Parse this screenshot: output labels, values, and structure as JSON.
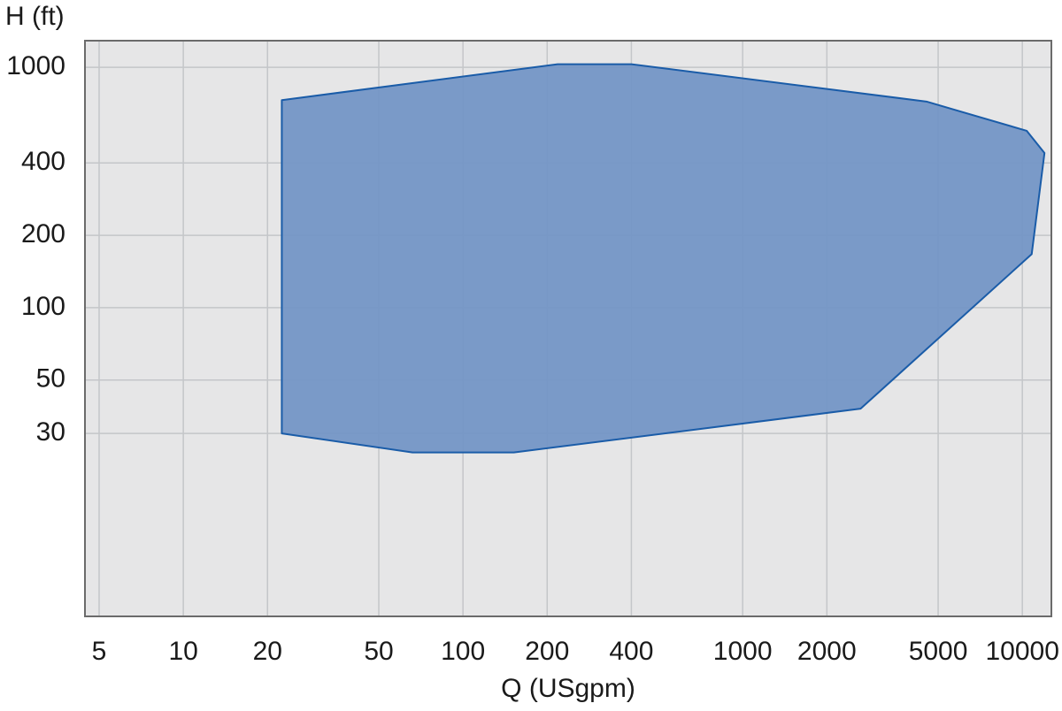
{
  "chart_data": {
    "type": "area",
    "x_label": "Q (USgpm)",
    "y_label": "H (ft)",
    "x": [
      22.5,
      218,
      400,
      4540,
      10370,
      12000,
      10800,
      2640,
      152,
      66,
      22.5
    ],
    "values": [
      730,
      1030,
      1030,
      720,
      544,
      440,
      167,
      38,
      25,
      25,
      30
    ],
    "color": "#7496c6",
    "edge_color": "#1a5ca8",
    "xlog": true,
    "ylog": true,
    "xlim": [
      4.45,
      12700
    ],
    "ylim": [
      5.2,
      1290
    ],
    "xticks": [
      5,
      10,
      20,
      50,
      100,
      200,
      400,
      1000,
      2000,
      5000,
      10000
    ],
    "yticks": [
      30,
      50,
      100,
      200,
      400,
      1000
    ],
    "grid": true
  }
}
